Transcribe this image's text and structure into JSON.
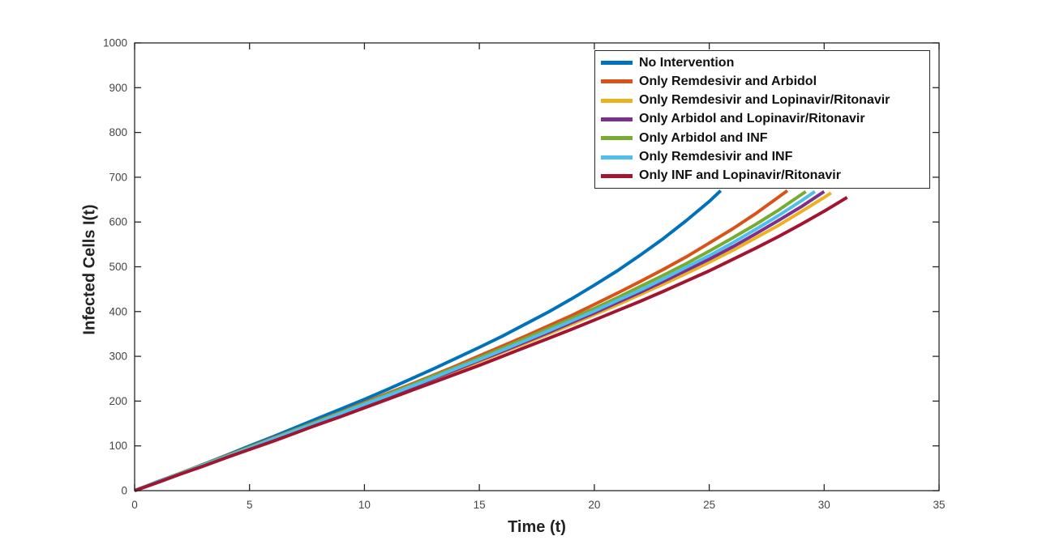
{
  "figure": {
    "background": "#ffffff"
  },
  "chart_data": {
    "type": "line",
    "title": "",
    "xlabel": "Time (t)",
    "ylabel": "Infected Cells I(t)",
    "xlim": [
      0,
      35
    ],
    "ylim": [
      0,
      1000
    ],
    "xticks": [
      0,
      5,
      10,
      15,
      20,
      25,
      30,
      35
    ],
    "yticks": [
      0,
      100,
      200,
      300,
      400,
      500,
      600,
      700,
      800,
      900,
      1000
    ],
    "grid": false,
    "box": true,
    "legend_position": "northeast",
    "axis_color": "#262626",
    "tick_label_color": "#454545",
    "line_width": 4,
    "series": [
      {
        "name": "No Intervention",
        "color": "#0072BD",
        "points": [
          [
            0,
            0
          ],
          [
            1,
            20
          ],
          [
            2,
            39
          ],
          [
            3,
            59
          ],
          [
            4,
            79
          ],
          [
            5,
            100
          ],
          [
            6,
            120
          ],
          [
            7,
            141
          ],
          [
            8,
            162
          ],
          [
            9,
            183
          ],
          [
            10,
            204
          ],
          [
            11,
            226
          ],
          [
            12,
            249
          ],
          [
            13,
            272
          ],
          [
            14,
            296
          ],
          [
            15,
            320
          ],
          [
            16,
            345
          ],
          [
            17,
            372
          ],
          [
            18,
            399
          ],
          [
            19,
            428
          ],
          [
            20,
            459
          ],
          [
            21,
            491
          ],
          [
            22,
            526
          ],
          [
            23,
            563
          ],
          [
            24,
            603
          ],
          [
            25,
            646
          ],
          [
            25.5,
            670
          ]
        ]
      },
      {
        "name": "Only Remdesivir and Arbidol",
        "color": "#D95319",
        "points": [
          [
            0,
            0
          ],
          [
            1,
            19
          ],
          [
            2,
            39
          ],
          [
            3,
            58
          ],
          [
            4,
            78
          ],
          [
            5,
            97
          ],
          [
            6,
            117
          ],
          [
            7,
            136
          ],
          [
            8,
            156
          ],
          [
            9,
            176
          ],
          [
            10,
            197
          ],
          [
            11,
            217
          ],
          [
            12,
            237
          ],
          [
            13,
            258
          ],
          [
            14,
            279
          ],
          [
            15,
            301
          ],
          [
            16,
            323
          ],
          [
            17,
            345
          ],
          [
            18,
            368
          ],
          [
            19,
            391
          ],
          [
            20,
            416
          ],
          [
            21,
            441
          ],
          [
            22,
            467
          ],
          [
            23,
            494
          ],
          [
            24,
            522
          ],
          [
            25,
            553
          ],
          [
            26,
            584
          ],
          [
            27,
            618
          ],
          [
            28,
            655
          ],
          [
            28.4,
            670
          ]
        ]
      },
      {
        "name": "Only Remdesivir and Lopinavir/Ritonavir",
        "color": "#EDB120",
        "points": [
          [
            0,
            0
          ],
          [
            1,
            19
          ],
          [
            2,
            38
          ],
          [
            3,
            56
          ],
          [
            4,
            75
          ],
          [
            5,
            94
          ],
          [
            6,
            113
          ],
          [
            7,
            132
          ],
          [
            8,
            151
          ],
          [
            9,
            171
          ],
          [
            10,
            190
          ],
          [
            11,
            209
          ],
          [
            12,
            229
          ],
          [
            13,
            248
          ],
          [
            14,
            268
          ],
          [
            15,
            288
          ],
          [
            16,
            309
          ],
          [
            17,
            329
          ],
          [
            18,
            350
          ],
          [
            19,
            371
          ],
          [
            20,
            393
          ],
          [
            21,
            415
          ],
          [
            22,
            438
          ],
          [
            23,
            461
          ],
          [
            24,
            485
          ],
          [
            25,
            510
          ],
          [
            26,
            536
          ],
          [
            27,
            564
          ],
          [
            28,
            592
          ],
          [
            29,
            623
          ],
          [
            30,
            655
          ],
          [
            30.3,
            665
          ]
        ]
      },
      {
        "name": "Only Arbidol and Lopinavir/Ritonavir",
        "color": "#7E2F8E",
        "points": [
          [
            0,
            0
          ],
          [
            1,
            19
          ],
          [
            2,
            38
          ],
          [
            3,
            57
          ],
          [
            4,
            76
          ],
          [
            5,
            95
          ],
          [
            6,
            114
          ],
          [
            7,
            133
          ],
          [
            8,
            152
          ],
          [
            9,
            172
          ],
          [
            10,
            191
          ],
          [
            11,
            211
          ],
          [
            12,
            230
          ],
          [
            13,
            250
          ],
          [
            14,
            270
          ],
          [
            15,
            291
          ],
          [
            16,
            311
          ],
          [
            17,
            332
          ],
          [
            18,
            353
          ],
          [
            19,
            375
          ],
          [
            20,
            397
          ],
          [
            21,
            420
          ],
          [
            22,
            443
          ],
          [
            23,
            467
          ],
          [
            24,
            492
          ],
          [
            25,
            517
          ],
          [
            26,
            544
          ],
          [
            27,
            573
          ],
          [
            28,
            603
          ],
          [
            29,
            634
          ],
          [
            30,
            668
          ]
        ]
      },
      {
        "name": "Only Arbidol and INF",
        "color": "#77AC30",
        "points": [
          [
            0,
            0
          ],
          [
            1,
            19
          ],
          [
            2,
            39
          ],
          [
            3,
            58
          ],
          [
            4,
            77
          ],
          [
            5,
            97
          ],
          [
            6,
            116
          ],
          [
            7,
            136
          ],
          [
            8,
            155
          ],
          [
            9,
            175
          ],
          [
            10,
            195
          ],
          [
            11,
            215
          ],
          [
            12,
            235
          ],
          [
            13,
            256
          ],
          [
            14,
            276
          ],
          [
            15,
            297
          ],
          [
            16,
            318
          ],
          [
            17,
            340
          ],
          [
            18,
            362
          ],
          [
            19,
            384
          ],
          [
            20,
            407
          ],
          [
            21,
            431
          ],
          [
            22,
            456
          ],
          [
            23,
            481
          ],
          [
            24,
            507
          ],
          [
            25,
            535
          ],
          [
            26,
            564
          ],
          [
            27,
            594
          ],
          [
            28,
            626
          ],
          [
            29,
            661
          ],
          [
            29.2,
            668
          ]
        ]
      },
      {
        "name": "Only Remdesivir and INF",
        "color": "#4DBEEE",
        "points": [
          [
            0,
            0
          ],
          [
            1,
            19
          ],
          [
            2,
            38
          ],
          [
            3,
            57
          ],
          [
            4,
            76
          ],
          [
            5,
            95
          ],
          [
            6,
            115
          ],
          [
            7,
            134
          ],
          [
            8,
            153
          ],
          [
            9,
            173
          ],
          [
            10,
            193
          ],
          [
            11,
            212
          ],
          [
            12,
            232
          ],
          [
            13,
            252
          ],
          [
            14,
            273
          ],
          [
            15,
            293
          ],
          [
            16,
            314
          ],
          [
            17,
            335
          ],
          [
            18,
            357
          ],
          [
            19,
            379
          ],
          [
            20,
            401
          ],
          [
            21,
            425
          ],
          [
            22,
            448
          ],
          [
            23,
            473
          ],
          [
            24,
            499
          ],
          [
            25,
            525
          ],
          [
            26,
            553
          ],
          [
            27,
            583
          ],
          [
            28,
            614
          ],
          [
            29,
            647
          ],
          [
            29.6,
            668
          ]
        ]
      },
      {
        "name": "Only INF and Lopinavir/Ritonavir",
        "color": "#A2142F",
        "points": [
          [
            0,
            0
          ],
          [
            1,
            18
          ],
          [
            2,
            37
          ],
          [
            3,
            55
          ],
          [
            4,
            74
          ],
          [
            5,
            92
          ],
          [
            6,
            110
          ],
          [
            7,
            129
          ],
          [
            8,
            148
          ],
          [
            9,
            166
          ],
          [
            10,
            185
          ],
          [
            11,
            204
          ],
          [
            12,
            223
          ],
          [
            13,
            242
          ],
          [
            14,
            261
          ],
          [
            15,
            280
          ],
          [
            16,
            300
          ],
          [
            17,
            320
          ],
          [
            18,
            340
          ],
          [
            19,
            360
          ],
          [
            20,
            381
          ],
          [
            21,
            402
          ],
          [
            22,
            423
          ],
          [
            23,
            445
          ],
          [
            24,
            468
          ],
          [
            25,
            491
          ],
          [
            26,
            516
          ],
          [
            27,
            541
          ],
          [
            28,
            567
          ],
          [
            29,
            595
          ],
          [
            30,
            624
          ],
          [
            31,
            655
          ]
        ]
      }
    ]
  }
}
